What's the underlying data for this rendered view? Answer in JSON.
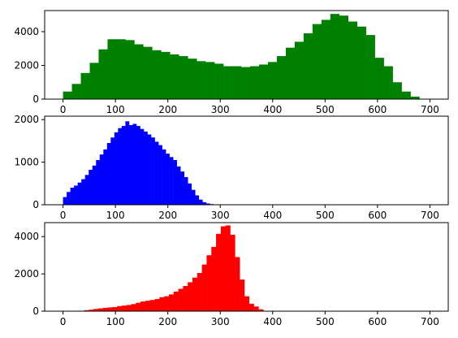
{
  "chart_data": [
    {
      "type": "bar",
      "color": "#008000",
      "xlim": [
        -35,
        735
      ],
      "ylim": [
        0,
        5250
      ],
      "xticks": [
        0,
        100,
        200,
        300,
        400,
        500,
        600,
        700
      ],
      "yticks": [
        0,
        2000,
        4000
      ],
      "bin_width": 17,
      "bin_start": 0,
      "values": [
        450,
        900,
        1550,
        2150,
        2950,
        3550,
        3550,
        3500,
        3250,
        3100,
        2900,
        2800,
        2650,
        2550,
        2400,
        2250,
        2200,
        2100,
        1950,
        1950,
        1900,
        1950,
        2050,
        2200,
        2550,
        3050,
        3400,
        3900,
        4450,
        4700,
        5050,
        4950,
        4600,
        4300,
        3800,
        2450,
        1950,
        1000,
        450,
        150
      ]
    },
    {
      "type": "bar",
      "color": "#0000ff",
      "xlim": [
        -35,
        735
      ],
      "ylim": [
        0,
        2080
      ],
      "xticks": [
        0,
        100,
        200,
        300,
        400,
        500,
        600,
        700
      ],
      "yticks": [
        0,
        1000,
        2000
      ],
      "bin_width": 7,
      "bin_start": 0,
      "values": [
        180,
        300,
        400,
        450,
        520,
        600,
        700,
        820,
        920,
        1050,
        1180,
        1300,
        1450,
        1580,
        1700,
        1800,
        1850,
        1960,
        1870,
        1900,
        1850,
        1780,
        1720,
        1650,
        1580,
        1480,
        1400,
        1300,
        1200,
        1120,
        1050,
        900,
        780,
        650,
        500,
        350,
        220,
        120,
        60,
        30,
        15
      ]
    },
    {
      "type": "bar",
      "color": "#ff0000",
      "xlim": [
        -35,
        735
      ],
      "ylim": [
        0,
        4750
      ],
      "xticks": [
        0,
        100,
        200,
        300,
        400,
        500,
        600,
        700
      ],
      "yticks": [
        0,
        2000,
        4000
      ],
      "bin_width": 9,
      "bin_start": 40,
      "values": [
        50,
        80,
        120,
        150,
        180,
        200,
        220,
        270,
        300,
        330,
        380,
        450,
        520,
        560,
        600,
        650,
        750,
        800,
        900,
        1050,
        1200,
        1350,
        1550,
        1800,
        2050,
        2500,
        3000,
        3450,
        4150,
        4550,
        4600,
        4100,
        2900,
        1700,
        800,
        400,
        250,
        100
      ]
    }
  ]
}
